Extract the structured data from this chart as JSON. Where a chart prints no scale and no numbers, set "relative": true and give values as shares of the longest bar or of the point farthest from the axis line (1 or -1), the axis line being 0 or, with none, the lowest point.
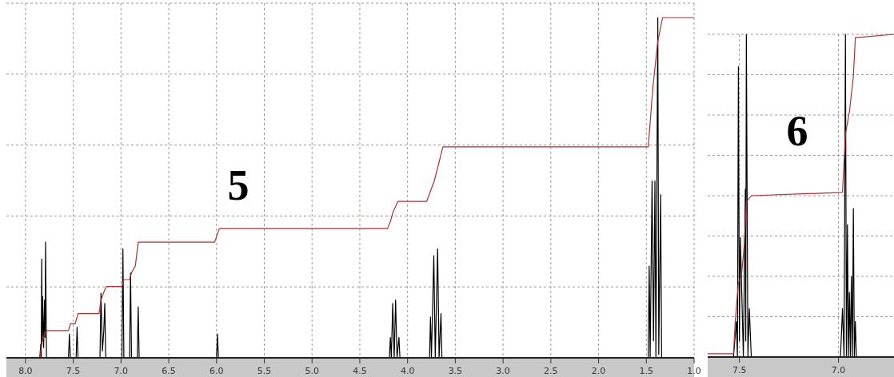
{
  "chart_data": [
    {
      "type": "line",
      "title": "5",
      "relative": true,
      "grid": true,
      "xlim": [
        8.2,
        1.0
      ],
      "xticks": [
        {
          "value": 8,
          "label": "8.0"
        },
        7.5,
        {
          "value": 7,
          "label": "7.0"
        },
        6.5,
        {
          "value": 6,
          "label": "6.0"
        },
        5.5,
        {
          "value": 5,
          "label": "5.0"
        },
        4.5,
        {
          "value": 4,
          "label": "4.0"
        },
        3.5,
        {
          "value": 3,
          "label": "3.0"
        },
        2.5,
        {
          "value": 2,
          "label": "2.0"
        },
        1.5,
        {
          "value": 1,
          "label": "1.0"
        }
      ],
      "series": [
        {
          "color": "#000000",
          "x": [
            8.2,
            7.85,
            7.84,
            7.835,
            7.83,
            7.825,
            7.82,
            7.81,
            7.8,
            7.795,
            7.79,
            7.78,
            7.55,
            7.54,
            7.53,
            7.47,
            7.46,
            7.45,
            7.22,
            7.21,
            7.195,
            7.18,
            7.17,
            7.16,
            6.99,
            6.98,
            6.97,
            6.91,
            6.9,
            6.89,
            6.83,
            6.82,
            6.81,
            6.0,
            5.99,
            5.98,
            4.19,
            4.18,
            4.17,
            4.155,
            4.14,
            4.125,
            4.11,
            4.09,
            4.08,
            3.77,
            3.76,
            3.75,
            3.725,
            3.71,
            3.685,
            3.67,
            3.65,
            3.64,
            1.48,
            1.47,
            1.46,
            1.44,
            1.425,
            1.41,
            1.4,
            1.38,
            1.37,
            1.35,
            1.34,
            1.0
          ],
          "values": [
            0,
            0,
            0.04,
            0,
            0.29,
            0.05,
            0.18,
            0.03,
            0.17,
            0.06,
            0.34,
            0,
            0,
            0.07,
            0,
            0,
            0.09,
            0,
            0,
            0.19,
            0.02,
            0.08,
            0.16,
            0,
            0,
            0.32,
            0,
            0,
            0.25,
            0,
            0,
            0.15,
            0,
            0,
            0.07,
            0,
            0,
            0.06,
            0,
            0.16,
            0,
            0.17,
            0,
            0.06,
            0,
            0,
            0.12,
            0,
            0.3,
            0,
            0.32,
            0,
            0.13,
            0,
            0,
            0.27,
            0,
            0.52,
            0.05,
            0.52,
            0,
            1.0,
            0.01,
            0.48,
            0,
            0
          ]
        },
        {
          "color": "#b03030",
          "x": [
            8.2,
            7.85,
            7.83,
            7.8,
            7.78,
            7.55,
            7.53,
            7.48,
            7.45,
            7.23,
            7.21,
            7.17,
            7.15,
            6.99,
            6.97,
            6.91,
            6.89,
            6.85,
            6.82,
            6.02,
            5.97,
            4.21,
            4.18,
            4.15,
            4.1,
            3.8,
            3.72,
            3.63,
            2.0,
            1.48,
            1.43,
            1.38,
            1.33,
            1.0
          ],
          "values": [
            0,
            0,
            0.04,
            0.07,
            0.08,
            0.08,
            0.1,
            0.1,
            0.13,
            0.13,
            0.17,
            0.2,
            0.21,
            0.21,
            0.23,
            0.23,
            0.25,
            0.27,
            0.34,
            0.34,
            0.38,
            0.38,
            0.4,
            0.43,
            0.46,
            0.46,
            0.52,
            0.62,
            0.62,
            0.62,
            0.8,
            0.93,
            1.0,
            1.0
          ]
        }
      ]
    },
    {
      "type": "line",
      "title": "6",
      "relative": true,
      "grid": true,
      "xlim": [
        7.66,
        6.72
      ],
      "xticks": [
        7.5,
        {
          "value": 7,
          "label": "7.0"
        }
      ],
      "series": [
        {
          "color": "#000000",
          "x": [
            7.66,
            7.53,
            7.515,
            7.51,
            7.505,
            7.5,
            7.495,
            7.48,
            7.47,
            7.468,
            7.465,
            7.457,
            7.45,
            7.44,
            6.99,
            6.98,
            6.972,
            6.965,
            6.96,
            6.955,
            6.95,
            6.945,
            6.94,
            6.935,
            6.93,
            6.925,
            6.92,
            6.915,
            6.91,
            6.72
          ],
          "values": [
            0,
            0,
            0.11,
            0,
            0.9,
            0.05,
            0.37,
            0,
            0.52,
            0.05,
            1.0,
            0,
            0.15,
            0,
            0,
            0.15,
            0,
            1.0,
            0,
            0.41,
            0,
            0.2,
            0,
            0.25,
            0,
            0.46,
            0,
            0.11,
            0,
            0
          ]
        },
        {
          "color": "#b03030",
          "x": [
            7.66,
            7.53,
            7.52,
            7.505,
            7.49,
            7.475,
            7.465,
            7.44,
            6.98,
            6.965,
            6.945,
            6.925,
            6.915,
            6.72
          ],
          "values": [
            0.01,
            0.01,
            0.12,
            0.23,
            0.25,
            0.35,
            0.48,
            0.5,
            0.51,
            0.69,
            0.76,
            0.87,
            0.99,
            1.0
          ]
        }
      ]
    }
  ]
}
